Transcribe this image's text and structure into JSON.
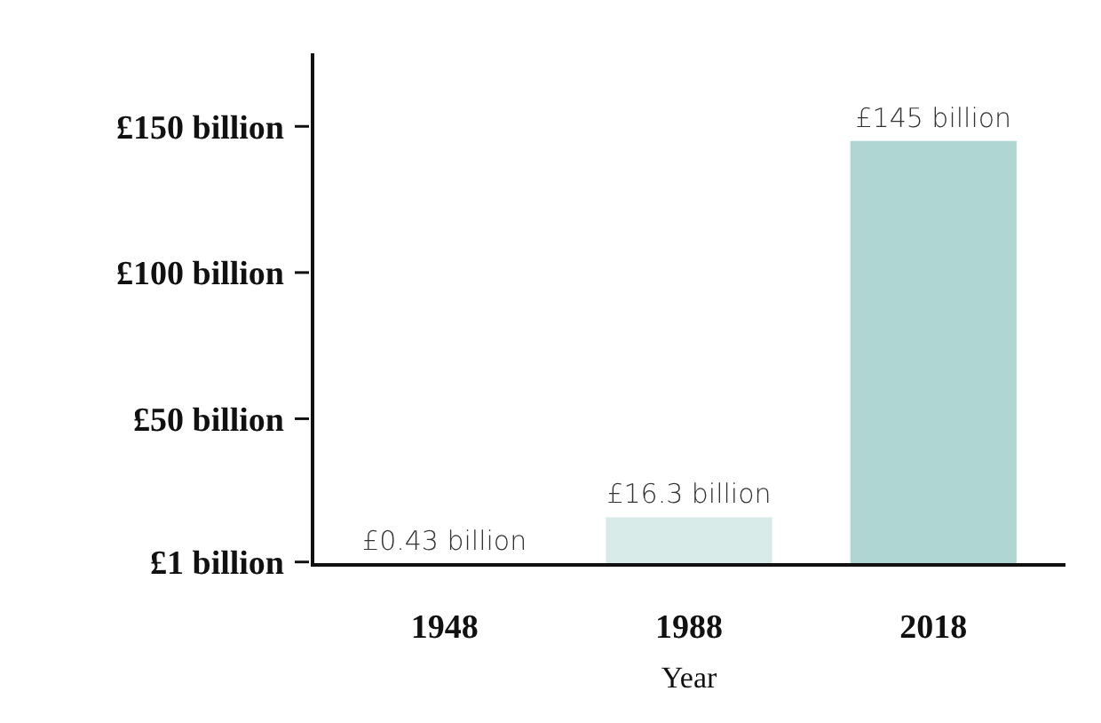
{
  "chart_data": {
    "type": "bar",
    "xlabel": "Year",
    "categories": [
      "1948",
      "1988",
      "2018"
    ],
    "values": [
      0.43,
      16.3,
      145
    ],
    "colors": [
      "#eef6f5",
      "#d9ebe8",
      "#afd6d2"
    ],
    "value_labels": [
      "£0.43 billion",
      "£16.3 billion",
      "£145 billion"
    ],
    "ylim": [
      0,
      175
    ],
    "yticks": [
      {
        "value": 1,
        "label": "£1 billion"
      },
      {
        "value": 50,
        "label": "£50 billion"
      },
      {
        "value": 100,
        "label": "£100 billion"
      },
      {
        "value": 150,
        "label": "£150 billion"
      }
    ],
    "grid": false
  }
}
